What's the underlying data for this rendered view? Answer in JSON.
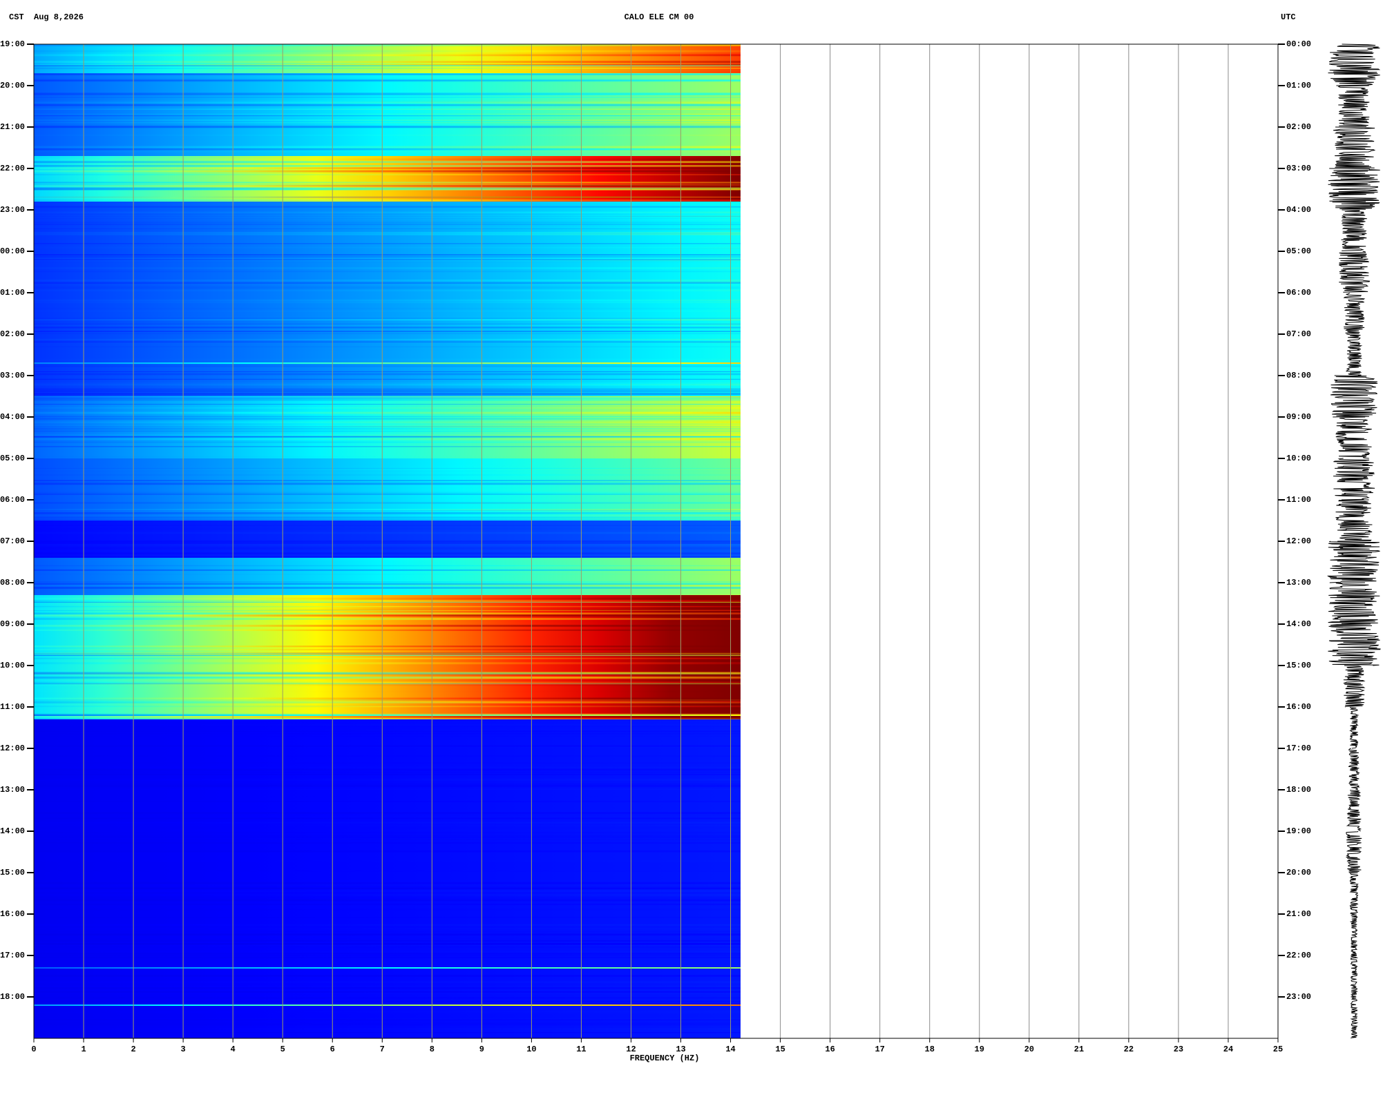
{
  "chart_data": {
    "type": "spectrogram",
    "station": "CALO ELE CM 00",
    "timezone_left": "CST",
    "date": "Aug 8,2026",
    "timezone_right": "UTC",
    "xlabel": "FREQUENCY (HZ)",
    "xlim": [
      0,
      25
    ],
    "xticks": [
      0,
      1,
      2,
      3,
      4,
      5,
      6,
      7,
      8,
      9,
      10,
      11,
      12,
      13,
      14,
      15,
      16,
      17,
      18,
      19,
      20,
      21,
      22,
      23,
      24,
      25
    ],
    "spectrum_xmax": 14.2,
    "ylim": [
      0,
      24
    ],
    "yticks": [
      {
        "value": 0,
        "label": "19:00"
      },
      {
        "value": 1,
        "label": "20:00"
      },
      {
        "value": 2,
        "label": "21:00"
      },
      {
        "value": 3,
        "label": "22:00"
      },
      {
        "value": 4,
        "label": "23:00"
      },
      {
        "value": 5,
        "label": "00:00"
      },
      {
        "value": 6,
        "label": "01:00"
      },
      {
        "value": 7,
        "label": "02:00"
      },
      {
        "value": 8,
        "label": "03:00"
      },
      {
        "value": 9,
        "label": "04:00"
      },
      {
        "value": 10,
        "label": "05:00"
      },
      {
        "value": 11,
        "label": "06:00"
      },
      {
        "value": 12,
        "label": "07:00"
      },
      {
        "value": 13,
        "label": "08:00"
      },
      {
        "value": 14,
        "label": "09:00"
      },
      {
        "value": 15,
        "label": "10:00"
      },
      {
        "value": 16,
        "label": "11:00"
      },
      {
        "value": 17,
        "label": "12:00"
      },
      {
        "value": 18,
        "label": "13:00"
      },
      {
        "value": 19,
        "label": "14:00"
      },
      {
        "value": 20,
        "label": "15:00"
      },
      {
        "value": 21,
        "label": "16:00"
      },
      {
        "value": 22,
        "label": "17:00"
      },
      {
        "value": 23,
        "label": "18:00"
      }
    ],
    "y2ticks": [
      {
        "value": 0,
        "label": "00:00"
      },
      {
        "value": 1,
        "label": "01:00"
      },
      {
        "value": 2,
        "label": "02:00"
      },
      {
        "value": 3,
        "label": "03:00"
      },
      {
        "value": 4,
        "label": "04:00"
      },
      {
        "value": 5,
        "label": "05:00"
      },
      {
        "value": 6,
        "label": "06:00"
      },
      {
        "value": 7,
        "label": "07:00"
      },
      {
        "value": 8,
        "label": "08:00"
      },
      {
        "value": 9,
        "label": "09:00"
      },
      {
        "value": 10,
        "label": "10:00"
      },
      {
        "value": 11,
        "label": "11:00"
      },
      {
        "value": 12,
        "label": "12:00"
      },
      {
        "value": 13,
        "label": "13:00"
      },
      {
        "value": 14,
        "label": "14:00"
      },
      {
        "value": 15,
        "label": "15:00"
      },
      {
        "value": 16,
        "label": "16:00"
      },
      {
        "value": 17,
        "label": "17:00"
      },
      {
        "value": 18,
        "label": "18:00"
      },
      {
        "value": 19,
        "label": "19:00"
      },
      {
        "value": 20,
        "label": "20:00"
      },
      {
        "value": 21,
        "label": "21:00"
      },
      {
        "value": 22,
        "label": "22:00"
      },
      {
        "value": 23,
        "label": "23:00"
      }
    ],
    "bands": {
      "start": [
        0,
        0.7,
        2.7,
        3.8,
        7.0,
        8.5,
        10.0,
        11.5,
        12.4,
        13.3,
        16.3
      ],
      "end": [
        0.7,
        2.7,
        3.8,
        7.0,
        8.5,
        10.0,
        11.5,
        12.4,
        13.3,
        16.3,
        24
      ],
      "level": [
        0.75,
        0.45,
        0.95,
        0.3,
        0.3,
        0.5,
        0.4,
        0.12,
        0.45,
        1.0,
        0.05
      ]
    },
    "lines": {
      "time": [
        7.7,
        16.2,
        22.3,
        23.2
      ],
      "level": [
        0.6,
        0.55,
        0.45,
        0.7
      ]
    },
    "trace_amplitude": [
      1,
      0.6,
      0.8,
      1,
      0.5,
      0.6,
      0.4,
      0.3,
      0.9,
      0.7,
      0.8,
      0.7,
      1,
      1,
      1,
      0.4,
      0.15,
      0.2,
      0.25,
      0.3,
      0.15,
      0.12,
      0.12,
      0.12
    ]
  }
}
